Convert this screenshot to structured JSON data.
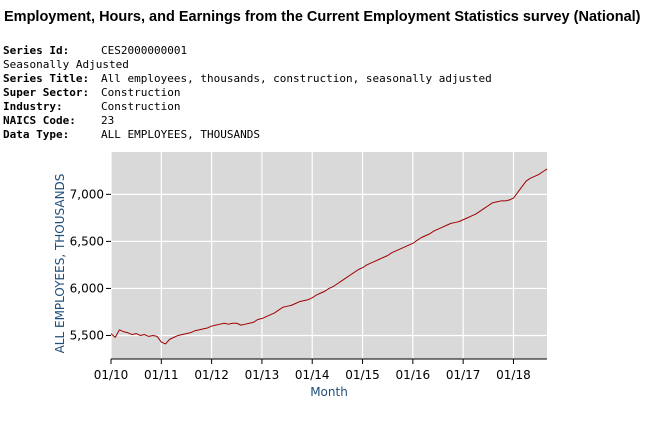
{
  "page_title": "Employment, Hours, and Earnings from the Current Employment Statistics survey (National)",
  "series_info": [
    {
      "key": "Series Id:",
      "value": "CES2000000001"
    },
    {
      "key": "",
      "value": "Seasonally Adjusted"
    },
    {
      "key": "Series Title:",
      "value": "All employees, thousands, construction, seasonally adjusted"
    },
    {
      "key": "Super Sector:",
      "value": "Construction"
    },
    {
      "key": "Industry:",
      "value": "Construction"
    },
    {
      "key": "NAICS Code:",
      "value": "23"
    },
    {
      "key": "Data Type:",
      "value": "ALL EMPLOYEES, THOUSANDS"
    }
  ],
  "colors": {
    "plot_background": "#d9d9d9",
    "grid": "#ffffff",
    "line": "#a00000",
    "axis_label": "#1f4e79"
  },
  "chart_data": {
    "type": "line",
    "title": "",
    "xlabel": "Month",
    "ylabel": "ALL EMPLOYEES, THOUSANDS",
    "x_tick_labels": [
      "01/10",
      "01/11",
      "01/12",
      "01/13",
      "01/14",
      "01/15",
      "01/16",
      "01/17",
      "01/18"
    ],
    "y_tick_labels": [
      "5,500",
      "6,000",
      "6,500",
      "7,000"
    ],
    "y_ticks": [
      5500,
      6000,
      6500,
      7000
    ],
    "ylim": [
      5250,
      7450
    ],
    "xlim": [
      "2010-01",
      "2018-09"
    ],
    "grid": true,
    "series": [
      {
        "x": [
          "2010-01",
          "2010-02",
          "2010-03",
          "2010-04",
          "2010-05",
          "2010-06",
          "2010-07",
          "2010-08",
          "2010-09",
          "2010-10",
          "2010-11",
          "2010-12",
          "2011-01",
          "2011-02",
          "2011-03",
          "2011-04",
          "2011-05",
          "2011-06",
          "2011-07",
          "2011-08",
          "2011-09",
          "2011-10",
          "2011-11",
          "2011-12",
          "2012-01",
          "2012-02",
          "2012-03",
          "2012-04",
          "2012-05",
          "2012-06",
          "2012-07",
          "2012-08",
          "2012-09",
          "2012-10",
          "2012-11",
          "2012-12",
          "2013-01",
          "2013-02",
          "2013-03",
          "2013-04",
          "2013-05",
          "2013-06",
          "2013-07",
          "2013-08",
          "2013-09",
          "2013-10",
          "2013-11",
          "2013-12",
          "2014-01",
          "2014-02",
          "2014-03",
          "2014-04",
          "2014-05",
          "2014-06",
          "2014-07",
          "2014-08",
          "2014-09",
          "2014-10",
          "2014-11",
          "2014-12",
          "2015-01",
          "2015-02",
          "2015-03",
          "2015-04",
          "2015-05",
          "2015-06",
          "2015-07",
          "2015-08",
          "2015-09",
          "2015-10",
          "2015-11",
          "2015-12",
          "2016-01",
          "2016-02",
          "2016-03",
          "2016-04",
          "2016-05",
          "2016-06",
          "2016-07",
          "2016-08",
          "2016-09",
          "2016-10",
          "2016-11",
          "2016-12",
          "2017-01",
          "2017-02",
          "2017-03",
          "2017-04",
          "2017-05",
          "2017-06",
          "2017-07",
          "2017-08",
          "2017-09",
          "2017-10",
          "2017-11",
          "2017-12",
          "2018-01",
          "2018-02",
          "2018-03",
          "2018-04",
          "2018-05",
          "2018-06",
          "2018-07",
          "2018-08",
          "2018-09"
        ],
        "values": [
          5520,
          5480,
          5560,
          5540,
          5530,
          5510,
          5520,
          5500,
          5510,
          5490,
          5500,
          5490,
          5430,
          5410,
          5460,
          5480,
          5500,
          5510,
          5520,
          5530,
          5550,
          5560,
          5570,
          5580,
          5600,
          5610,
          5620,
          5630,
          5620,
          5630,
          5630,
          5610,
          5620,
          5630,
          5640,
          5670,
          5680,
          5700,
          5720,
          5740,
          5770,
          5800,
          5810,
          5820,
          5840,
          5860,
          5870,
          5880,
          5900,
          5930,
          5950,
          5970,
          6000,
          6020,
          6050,
          6080,
          6110,
          6140,
          6170,
          6200,
          6220,
          6250,
          6270,
          6290,
          6310,
          6330,
          6350,
          6380,
          6400,
          6420,
          6440,
          6460,
          6480,
          6510,
          6540,
          6560,
          6580,
          6610,
          6630,
          6650,
          6670,
          6690,
          6700,
          6710,
          6730,
          6750,
          6770,
          6790,
          6820,
          6850,
          6880,
          6910,
          6920,
          6930,
          6930,
          6940,
          6960,
          7020,
          7080,
          7140,
          7170,
          7190,
          7210,
          7240,
          7270
        ]
      }
    ]
  }
}
